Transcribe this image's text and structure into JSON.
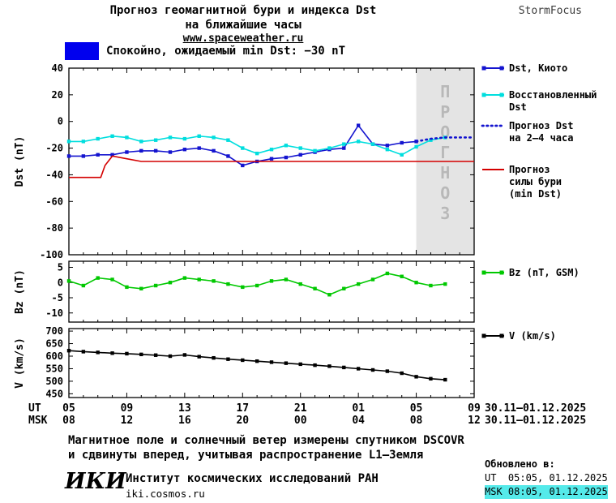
{
  "header": {
    "title_line1": "Прогноз геомагнитной бури и индекса Dst",
    "title_line2": "на ближайшие часы",
    "site": "www.spaceweather.ru",
    "brand": "StormFocus"
  },
  "status_banner": {
    "color": "#0000ee",
    "text": "Спокойно, ожидаемый min Dst: −30 nT"
  },
  "axis": {
    "hours_span": 28,
    "tick_hours": [
      0,
      4,
      8,
      12,
      16,
      20,
      24,
      28
    ],
    "ut_label": "UT",
    "msk_label": "MSK",
    "ut_ticks": [
      "05",
      "09",
      "13",
      "17",
      "21",
      "01",
      "05",
      "09"
    ],
    "msk_ticks": [
      "08",
      "12",
      "16",
      "20",
      "00",
      "04",
      "08",
      "12"
    ],
    "ut_date": "30.11–01.12.2025",
    "msk_date": "30.11–01.12.2025"
  },
  "forecast_overlay": {
    "label": "ПРОГНОЗ",
    "start_hour": 24,
    "fill": "#e4e4e4"
  },
  "chart_data": [
    {
      "type": "line",
      "ylabel": "Dst (nT)",
      "ylim": [
        -100,
        40
      ],
      "yticks": [
        40,
        20,
        0,
        -20,
        -40,
        -60,
        -80,
        -100
      ],
      "series": [
        {
          "name": "Dst, Киото",
          "color": "#1414cf",
          "marker": true,
          "style": "solid",
          "x": [
            0,
            1,
            2,
            3,
            4,
            5,
            6,
            7,
            8,
            9,
            10,
            11,
            12,
            13,
            14,
            15,
            16,
            17,
            18,
            19,
            20,
            21,
            22,
            23,
            24
          ],
          "values": [
            -26,
            -26,
            -25,
            -25,
            -23,
            -22,
            -22,
            -23,
            -21,
            -20,
            -22,
            -26,
            -33,
            -30,
            -28,
            -27,
            -25,
            -23,
            -21,
            -20,
            -3,
            -17,
            -18,
            -16,
            -15
          ]
        },
        {
          "name": "Восстановленный Dst",
          "color": "#00dede",
          "marker": true,
          "style": "solid",
          "x": [
            0,
            1,
            2,
            3,
            4,
            5,
            6,
            7,
            8,
            9,
            10,
            11,
            12,
            13,
            14,
            15,
            16,
            17,
            18,
            19,
            20,
            21,
            22,
            23,
            24,
            25,
            26
          ],
          "values": [
            -15,
            -15,
            -13,
            -11,
            -12,
            -15,
            -14,
            -12,
            -13,
            -11,
            -12,
            -14,
            -20,
            -24,
            -21,
            -18,
            -20,
            -22,
            -20,
            -17,
            -15,
            -17,
            -21,
            -25,
            -19,
            -14,
            -12
          ]
        },
        {
          "name": "Прогноз Dst на 2–4 часа",
          "color": "#1414cf",
          "marker": false,
          "style": "dotted",
          "x": [
            24,
            25,
            26,
            27,
            28
          ],
          "values": [
            -15,
            -13,
            -12,
            -12,
            -12
          ]
        },
        {
          "name": "Прогноз силы бури (min Dst)",
          "color": "#d40000",
          "marker": false,
          "style": "solid",
          "x": [
            0,
            2.2,
            2.5,
            3,
            4,
            5,
            28
          ],
          "values": [
            -42,
            -42,
            -33,
            -26,
            -28,
            -30,
            -30
          ]
        }
      ]
    },
    {
      "type": "line",
      "ylabel": "Bz (nT)",
      "ylim": [
        -13,
        7
      ],
      "yticks": [
        5,
        0,
        -5,
        -10
      ],
      "series": [
        {
          "name": "Bz (nT, GSM)",
          "color": "#00c800",
          "marker": true,
          "style": "solid",
          "x": [
            0,
            1,
            2,
            3,
            4,
            5,
            6,
            7,
            8,
            9,
            10,
            11,
            12,
            13,
            14,
            15,
            16,
            17,
            18,
            19,
            20,
            21,
            22,
            23,
            24,
            25,
            26
          ],
          "values": [
            0.5,
            -1,
            1.5,
            1,
            -1.5,
            -2,
            -1,
            0,
            1.5,
            1,
            0.5,
            -0.5,
            -1.5,
            -1,
            0.5,
            1,
            -0.5,
            -2,
            -4,
            -2,
            -0.5,
            1,
            3,
            2,
            0,
            -1,
            -0.5
          ]
        }
      ]
    },
    {
      "type": "line",
      "ylabel": "V (km/s)",
      "ylim": [
        435,
        710
      ],
      "yticks": [
        700,
        650,
        600,
        550,
        500,
        450
      ],
      "series": [
        {
          "name": "V (km/s)",
          "color": "#000000",
          "marker": true,
          "style": "solid",
          "x": [
            0,
            1,
            2,
            3,
            4,
            5,
            6,
            7,
            8,
            9,
            10,
            11,
            12,
            13,
            14,
            15,
            16,
            17,
            18,
            19,
            20,
            21,
            22,
            23,
            24,
            25,
            26
          ],
          "values": [
            622,
            618,
            615,
            612,
            610,
            607,
            604,
            600,
            605,
            598,
            593,
            588,
            584,
            580,
            576,
            572,
            568,
            564,
            560,
            555,
            550,
            545,
            540,
            532,
            518,
            510,
            506
          ]
        }
      ]
    }
  ],
  "legend": [
    {
      "lines": [
        "Dst, Киото"
      ],
      "color": "#1414cf",
      "style": "solid",
      "marker": true
    },
    {
      "lines": [
        "Восстановленный",
        "Dst"
      ],
      "color": "#00dede",
      "style": "solid",
      "marker": true
    },
    {
      "lines": [
        "Прогноз Dst",
        "на 2–4 часа"
      ],
      "color": "#1414cf",
      "style": "dotted",
      "marker": false
    },
    {
      "lines": [
        "Прогноз",
        "силы бури",
        "(min Dst)"
      ],
      "color": "#d40000",
      "style": "solid",
      "marker": false
    },
    {
      "lines": [
        "Bz (nT, GSM)"
      ],
      "color": "#00c800",
      "style": "solid",
      "marker": true
    },
    {
      "lines": [
        "V (km/s)"
      ],
      "color": "#000000",
      "style": "solid",
      "marker": true
    }
  ],
  "footnote": {
    "line1": "Магнитное поле и солнечный ветер измерены спутником DSCOVR",
    "line2": "и сдвинуты вперед, учитывая распространение L1–Земля"
  },
  "footer": {
    "logo": "ИКИ",
    "institute": "Институт космических исследований РАН",
    "site": "iki.cosmos.ru",
    "updated_label": "Обновлено в:",
    "updated_ut": "UT  05:05, 01.12.2025",
    "updated_msk": "MSK 08:05, 01.12.2025",
    "highlight": "#55eaea"
  }
}
